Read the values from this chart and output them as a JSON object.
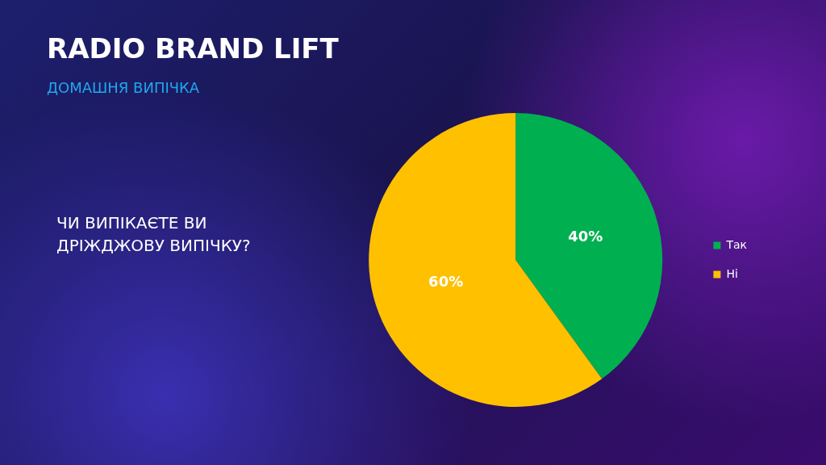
{
  "chart_data": {
    "type": "pie",
    "title": "RADIO BRAND LIFT",
    "subtitle": "ДОМАШНЯ ВИПІЧКА",
    "annotations": [
      "ЧИ ВИПІКАЄТЕ ВИ ДРІЖДЖОВУ ВИПІЧКУ?"
    ],
    "categories": [
      "Так",
      "Ні"
    ],
    "values": [
      40,
      60
    ],
    "colors": [
      "#00b050",
      "#ffc000"
    ],
    "value_labels": [
      "40%",
      "60%"
    ],
    "legend": "right"
  }
}
